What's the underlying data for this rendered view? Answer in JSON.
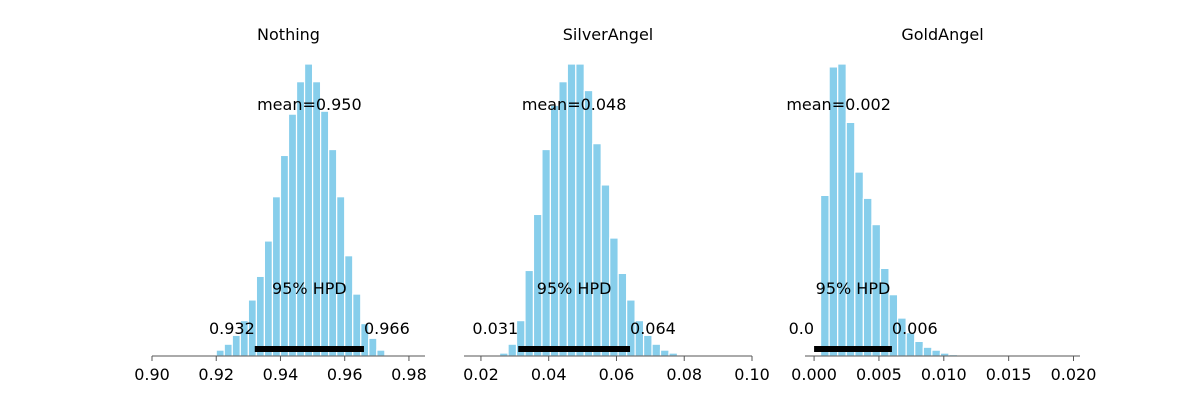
{
  "chart_data": [
    {
      "type": "bar",
      "title": "Nothing",
      "xlim": [
        0.9,
        0.985
      ],
      "ticks": [
        0.9,
        0.92,
        0.94,
        0.96,
        0.98
      ],
      "tick_labels": [
        "0.90",
        "0.92",
        "0.94",
        "0.96",
        "0.98"
      ],
      "bins": {
        "start": 0.92,
        "width": 0.0025,
        "values": [
          2,
          4,
          7,
          12,
          19,
          27,
          39,
          54,
          68,
          82,
          93,
          99,
          93,
          83,
          70,
          54,
          34,
          21,
          11,
          6,
          2
        ]
      },
      "mean_label": "mean=0.950",
      "hpd_label": "95% HPD",
      "hpd": [
        0.932,
        0.966
      ],
      "hpd_low_label": "0.932",
      "hpd_high_label": "0.966"
    },
    {
      "type": "bar",
      "title": "SilverAngel",
      "xlim": [
        0.015,
        0.1
      ],
      "ticks": [
        0.02,
        0.04,
        0.06,
        0.08,
        0.1
      ],
      "tick_labels": [
        "0.02",
        "0.04",
        "0.06",
        "0.08",
        "0.10"
      ],
      "bins": {
        "start": 0.0255,
        "width": 0.0025,
        "values": [
          1,
          4,
          12,
          29,
          48,
          70,
          85,
          93,
          99,
          99,
          90,
          72,
          58,
          40,
          28,
          19,
          12,
          7,
          4,
          2,
          1
        ]
      },
      "mean_label": "mean=0.048",
      "hpd_label": "95% HPD",
      "hpd": [
        0.031,
        0.064
      ],
      "hpd_low_label": "0.031",
      "hpd_high_label": "0.064"
    },
    {
      "type": "bar",
      "title": "GoldAngel",
      "xlim": [
        -0.0007,
        0.0205
      ],
      "ticks": [
        0.0,
        0.005,
        0.01,
        0.015,
        0.02
      ],
      "tick_labels": [
        "0.000",
        "0.005",
        "0.010",
        "0.015",
        "0.020"
      ],
      "bins": {
        "start": 0.0005,
        "width": 0.00066,
        "values": [
          55,
          99,
          100,
          80,
          63,
          54,
          45,
          30,
          21,
          13,
          8,
          5,
          3,
          2,
          1,
          0.5
        ]
      },
      "mean_label": "mean=0.002",
      "hpd_label": "95% HPD",
      "hpd": [
        0.0,
        0.006
      ],
      "hpd_low_label": "0.0",
      "hpd_high_label": "0.006"
    }
  ]
}
